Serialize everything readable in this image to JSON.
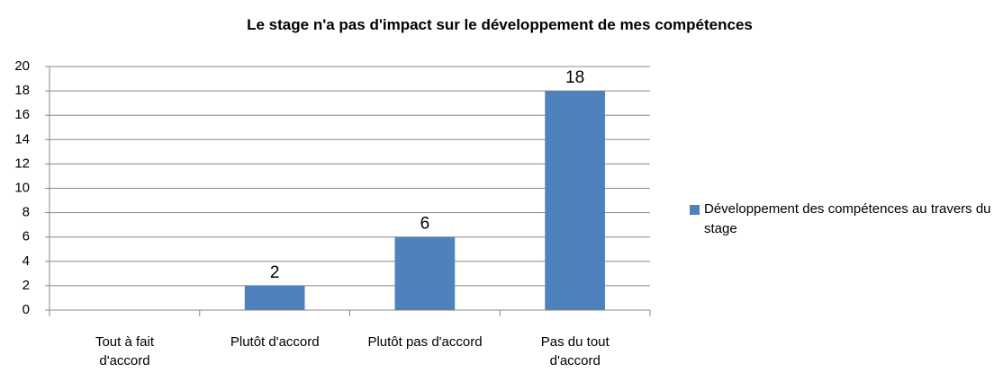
{
  "chart_data": {
    "type": "bar",
    "title": "Le stage n'a pas d'impact sur le développement de mes compétences",
    "categories": [
      "Tout à fait\nd'accord",
      "Plutôt d'accord",
      "Plutôt pas d'accord",
      "Pas du tout\nd'accord"
    ],
    "series": [
      {
        "name": "Développement des compétences au travers du stage",
        "color": "#4f81bd",
        "values": [
          null,
          2,
          6,
          18
        ]
      }
    ],
    "ylim": [
      0,
      20
    ],
    "yticks": [
      0,
      2,
      4,
      6,
      8,
      10,
      12,
      14,
      16,
      18,
      20
    ],
    "grid": true,
    "legend": "right"
  }
}
